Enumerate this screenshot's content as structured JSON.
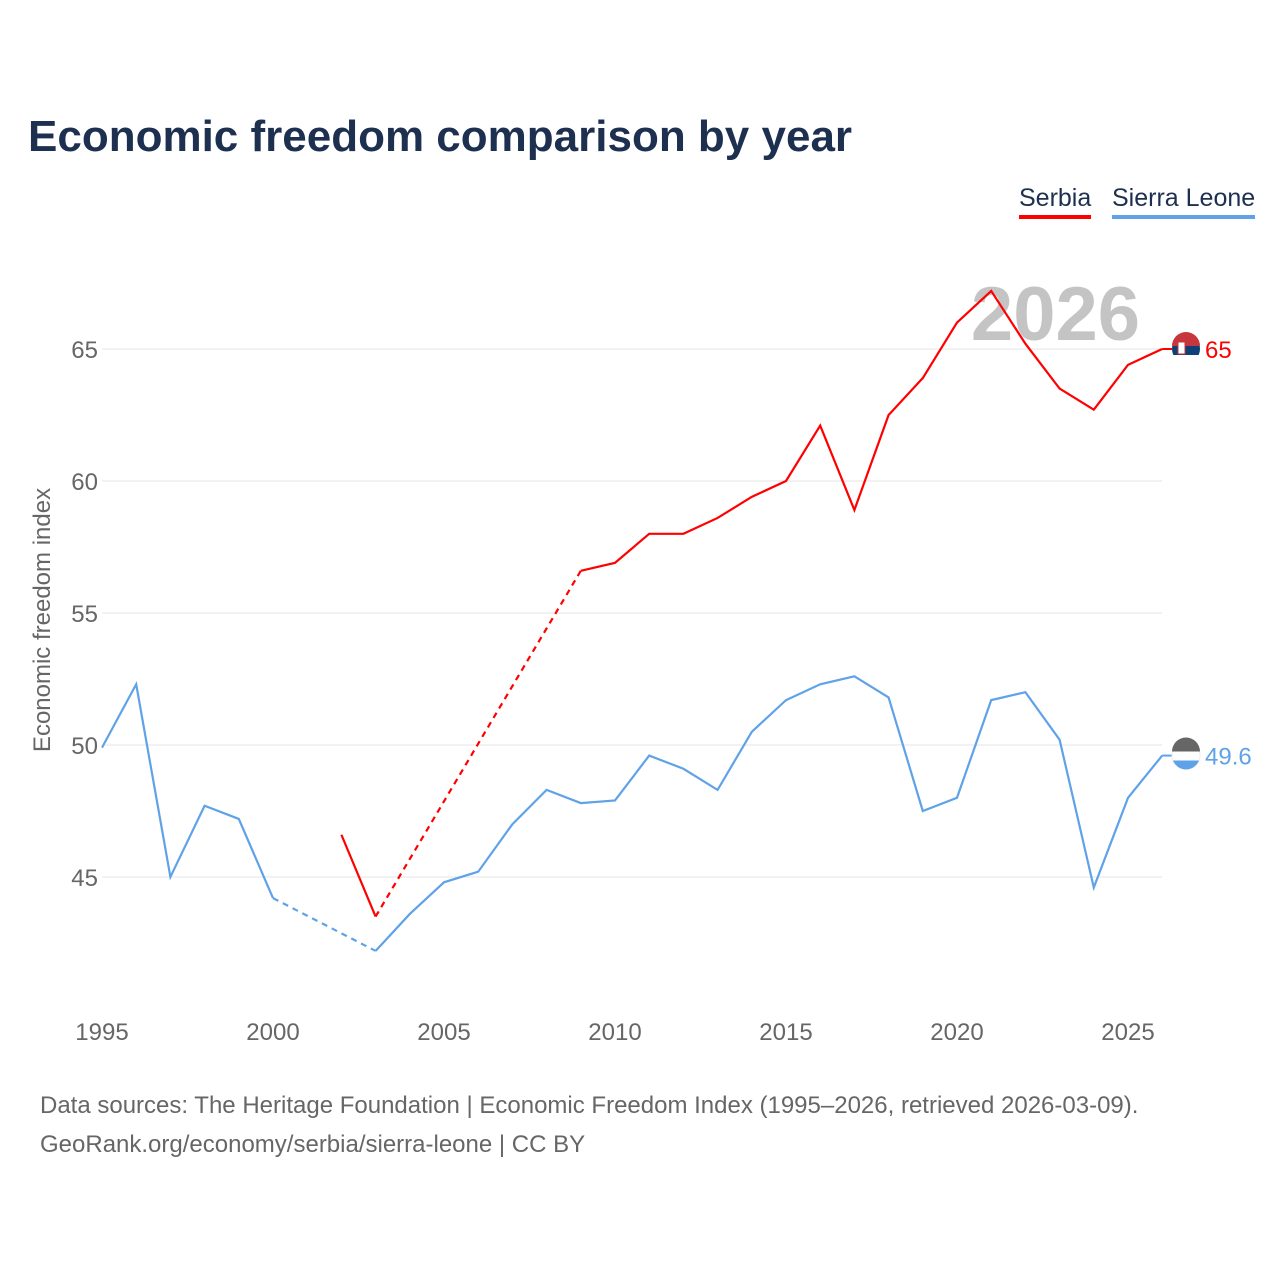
{
  "title": "Economic freedom comparison by year",
  "legend": [
    "Serbia",
    "Sierra Leone"
  ],
  "footer": {
    "line1": "Data sources: The Heritage Foundation | Economic Freedom Index (1995–2026, retrieved 2026-03-09).",
    "line2": "GeoRank.org/economy/serbia/sierra-leone | CC BY"
  },
  "chart_data": {
    "type": "line",
    "title": "Economic freedom comparison by year",
    "xlabel": "",
    "ylabel": "Economic freedom index",
    "xlim": [
      1995,
      2026
    ],
    "ylim": [
      40,
      69
    ],
    "x_ticks": [
      1995,
      2000,
      2005,
      2010,
      2015,
      2020,
      2025
    ],
    "y_ticks": [
      45,
      50,
      55,
      60,
      65
    ],
    "grid": true,
    "watermark_year": "2026",
    "legend_position": "top-right",
    "series": [
      {
        "name": "Serbia",
        "color": "#ff0000",
        "end_label": "65",
        "x": [
          2002,
          2003,
          2004,
          2005,
          2006,
          2007,
          2008,
          2009,
          2010,
          2011,
          2012,
          2013,
          2014,
          2015,
          2016,
          2017,
          2018,
          2019,
          2020,
          2021,
          2022,
          2023,
          2024,
          2025,
          2026
        ],
        "values": [
          46.6,
          43.5,
          null,
          null,
          null,
          null,
          null,
          56.6,
          56.9,
          58.0,
          58.0,
          58.6,
          59.4,
          60.0,
          62.1,
          58.9,
          62.5,
          63.9,
          66.0,
          67.2,
          65.2,
          63.5,
          62.7,
          64.4,
          65.0
        ]
      },
      {
        "name": "Sierra Leone",
        "color": "#5fa2e8",
        "end_label": "49.6",
        "x": [
          1995,
          1996,
          1997,
          1998,
          1999,
          2000,
          2001,
          2002,
          2003,
          2004,
          2005,
          2006,
          2007,
          2008,
          2009,
          2010,
          2011,
          2012,
          2013,
          2014,
          2015,
          2016,
          2017,
          2018,
          2019,
          2020,
          2021,
          2022,
          2023,
          2024,
          2025,
          2026
        ],
        "values": [
          49.9,
          52.3,
          45.0,
          47.7,
          47.2,
          44.2,
          null,
          null,
          42.2,
          43.6,
          44.8,
          45.2,
          47.0,
          48.3,
          47.8,
          47.9,
          49.6,
          49.1,
          48.3,
          50.5,
          51.7,
          52.3,
          52.6,
          51.8,
          47.5,
          48.0,
          51.7,
          52.0,
          50.2,
          44.6,
          48.0,
          49.6
        ]
      }
    ]
  }
}
